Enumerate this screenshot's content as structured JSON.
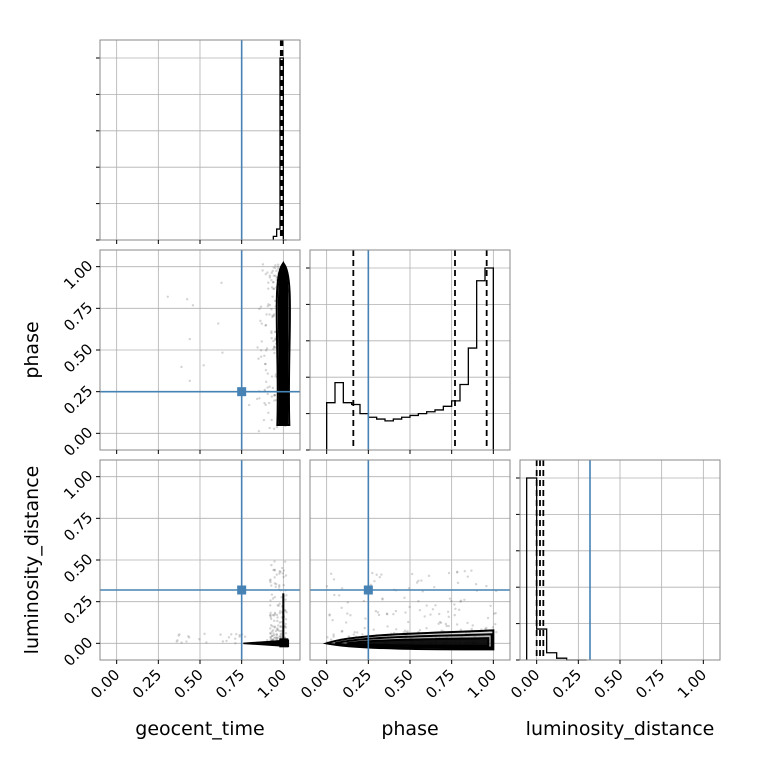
{
  "chart_data": {
    "type": "corner",
    "parameters": [
      "geocent_time",
      "phase",
      "luminosity_distance"
    ],
    "axis_labels": {
      "geocent_time": "geocent_time",
      "phase": "phase",
      "luminosity_distance": "luminosity_distance"
    },
    "tick_values": [
      0.0,
      0.25,
      0.5,
      0.75,
      1.0
    ],
    "tick_labels": [
      "0.00",
      "0.25",
      "0.50",
      "0.75",
      "1.00"
    ],
    "axis_range": [
      -0.1,
      1.1
    ],
    "grid": true,
    "injection": {
      "geocent_time": 0.75,
      "phase": 0.25,
      "luminosity_distance": 0.32
    },
    "injection_color": "#4682b4",
    "series_color": "#000000",
    "histograms": {
      "geocent_time": {
        "bin_edges": [
          0.94,
          0.96,
          0.98,
          1.0,
          1.02
        ],
        "counts": [
          0.02,
          0.06,
          1.0,
          0.0
        ],
        "quantiles": [
          0.985,
          0.99,
          0.995
        ]
      },
      "phase": {
        "bin_edges": [
          0.0,
          0.05,
          0.1,
          0.15,
          0.2,
          0.25,
          0.3,
          0.35,
          0.4,
          0.45,
          0.5,
          0.55,
          0.6,
          0.65,
          0.7,
          0.75,
          0.8,
          0.85,
          0.9,
          0.95,
          1.0
        ],
        "counts": [
          0.26,
          0.37,
          0.26,
          0.25,
          0.2,
          0.18,
          0.17,
          0.16,
          0.17,
          0.18,
          0.19,
          0.2,
          0.21,
          0.22,
          0.24,
          0.27,
          0.36,
          0.56,
          0.93,
          1.0
        ],
        "quantiles": [
          0.16,
          0.77,
          0.96
        ]
      },
      "luminosity_distance": {
        "bin_edges": [
          -0.06,
          0.0,
          0.06,
          0.12,
          0.18,
          0.24,
          0.3
        ],
        "counts": [
          1.0,
          0.17,
          0.04,
          0.01,
          0.0,
          0.0
        ],
        "quantiles": [
          0.0,
          0.02,
          0.04
        ]
      }
    },
    "contour_levels": 4
  }
}
